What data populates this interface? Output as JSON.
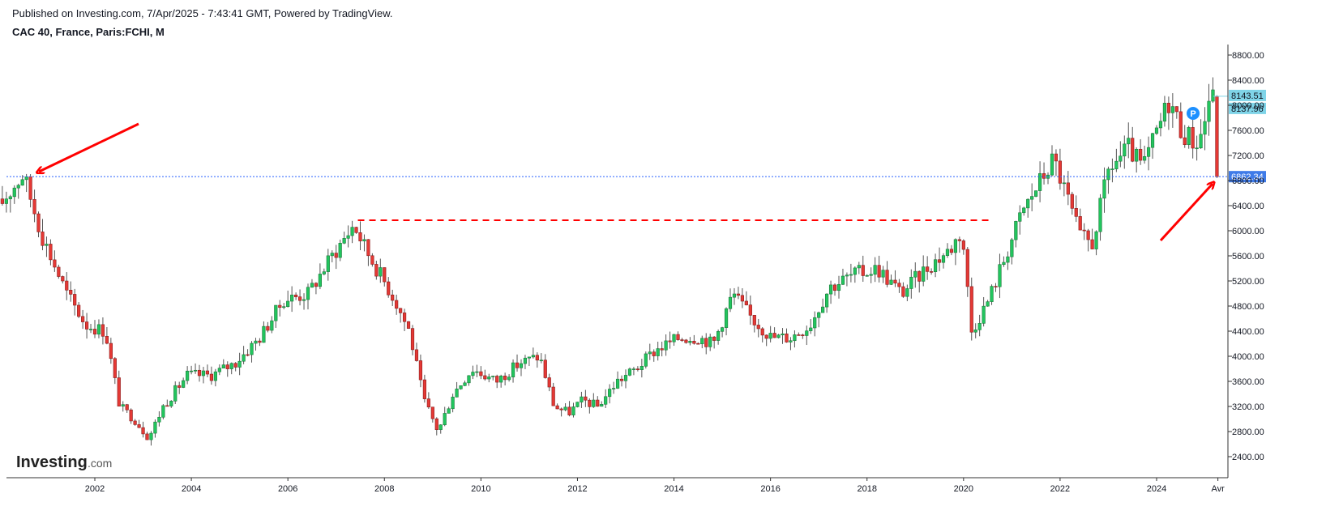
{
  "header": {
    "published": "Published on Investing.com, 7/Apr/2025 - 7:43:41 GMT, Powered by TradingView.",
    "symbol": "CAC 40, France, Paris:FCHI, M"
  },
  "logo": {
    "main": "Investing",
    "suffix": ".com"
  },
  "colors": {
    "up": "#26a69a",
    "up_fill": "#22c55e",
    "down": "#ef5350",
    "down_fill": "#e53935",
    "wick": "#555555",
    "arrow": "#ff0000",
    "current_line": "#2962ff",
    "label_cyan": "#7fd4e8",
    "label_blue": "#3f7be8"
  },
  "chart_data": {
    "type": "candlestick",
    "timeframe": "M",
    "ylim": [
      2200,
      9000
    ],
    "y_ticks": [
      "8800.00",
      "8400.00",
      "8000.00",
      "7600.00",
      "7200.00",
      "6800.00",
      "6400.00",
      "6000.00",
      "5600.00",
      "5200.00",
      "4800.00",
      "4400.00",
      "4000.00",
      "3600.00",
      "3200.00",
      "2800.00",
      "2400.00"
    ],
    "x_ticks": [
      "2002",
      "2004",
      "2006",
      "2008",
      "2010",
      "2012",
      "2014",
      "2016",
      "2018",
      "2020",
      "2022",
      "2024",
      "Avr"
    ],
    "price_labels": {
      "high_label": "8143.51",
      "prev_label": "8137.96",
      "current_label": "6862.34"
    },
    "current_price": 6862.34,
    "horizontal_line_level": 6168,
    "marker_badge": "P",
    "anchors": [
      [
        2000.0,
        6300
      ],
      [
        2000.6,
        6900
      ],
      [
        2001.0,
        5900
      ],
      [
        2001.5,
        5000
      ],
      [
        2001.9,
        4500
      ],
      [
        2002.3,
        4400
      ],
      [
        2002.6,
        3200
      ],
      [
        2002.9,
        3000
      ],
      [
        2003.2,
        2700
      ],
      [
        2003.5,
        3200
      ],
      [
        2004.0,
        3700
      ],
      [
        2004.5,
        3700
      ],
      [
        2005.0,
        3900
      ],
      [
        2005.5,
        4300
      ],
      [
        2006.0,
        4900
      ],
      [
        2006.5,
        5000
      ],
      [
        2007.0,
        5600
      ],
      [
        2007.45,
        6100
      ],
      [
        2007.7,
        5700
      ],
      [
        2008.0,
        5300
      ],
      [
        2008.3,
        4900
      ],
      [
        2008.6,
        4400
      ],
      [
        2008.9,
        3300
      ],
      [
        2009.2,
        2800
      ],
      [
        2009.5,
        3400
      ],
      [
        2009.9,
        3800
      ],
      [
        2010.4,
        3600
      ],
      [
        2010.9,
        3900
      ],
      [
        2011.3,
        4000
      ],
      [
        2011.6,
        3200
      ],
      [
        2011.9,
        3100
      ],
      [
        2012.2,
        3300
      ],
      [
        2012.5,
        3200
      ],
      [
        2012.9,
        3600
      ],
      [
        2013.3,
        3800
      ],
      [
        2013.7,
        4100
      ],
      [
        2014.2,
        4300
      ],
      [
        2014.6,
        4300
      ],
      [
        2014.9,
        4200
      ],
      [
        2015.3,
        5000
      ],
      [
        2015.7,
        4600
      ],
      [
        2016.1,
        4300
      ],
      [
        2016.5,
        4300
      ],
      [
        2016.9,
        4500
      ],
      [
        2017.3,
        5100
      ],
      [
        2017.8,
        5300
      ],
      [
        2018.3,
        5400
      ],
      [
        2018.8,
        5000
      ],
      [
        2019.3,
        5400
      ],
      [
        2019.8,
        5700
      ],
      [
        2020.05,
        6000
      ],
      [
        2020.25,
        4400
      ],
      [
        2020.6,
        4900
      ],
      [
        2020.9,
        5500
      ],
      [
        2021.3,
        6300
      ],
      [
        2021.6,
        6700
      ],
      [
        2021.95,
        7150
      ],
      [
        2022.2,
        6600
      ],
      [
        2022.5,
        5900
      ],
      [
        2022.75,
        5800
      ],
      [
        2023.1,
        7000
      ],
      [
        2023.5,
        7300
      ],
      [
        2023.8,
        7000
      ],
      [
        2024.1,
        7600
      ],
      [
        2024.35,
        8100
      ],
      [
        2024.6,
        7600
      ],
      [
        2024.9,
        7400
      ],
      [
        2025.05,
        7600
      ],
      [
        2025.15,
        8100
      ],
      [
        2025.22,
        8100
      ]
    ]
  }
}
